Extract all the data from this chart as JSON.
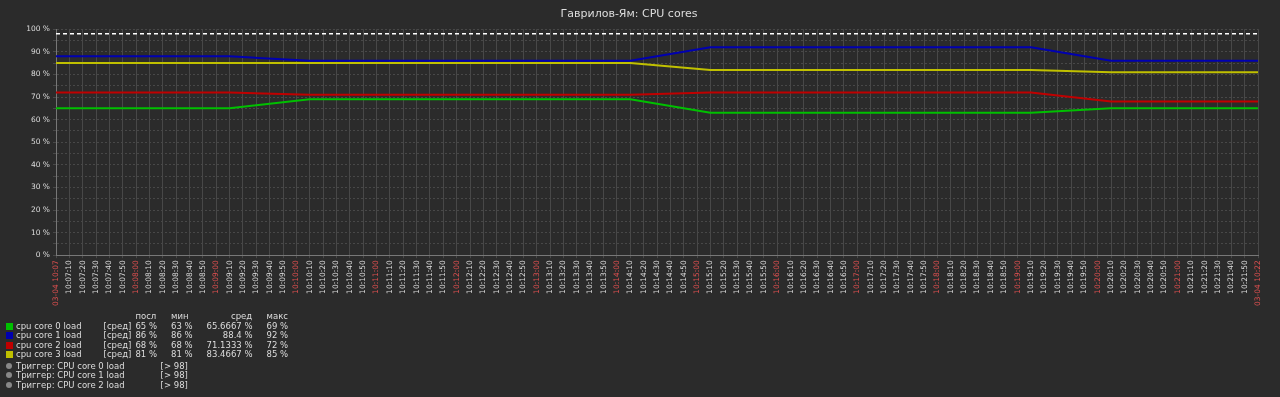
{
  "chart_data": {
    "type": "line",
    "title": "Гаврилов-Ям: CPU cores",
    "x": [
      10.116667,
      10.152778,
      10.169444,
      10.236111,
      10.252778,
      10.319444,
      10.336111,
      10.366667
    ],
    "series": [
      {
        "name": "cpu core 0 load",
        "color": "#00c000",
        "values": [
          65,
          65,
          69,
          69,
          63,
          63,
          65,
          65
        ]
      },
      {
        "name": "cpu core 1 load",
        "color": "#0000b0",
        "values": [
          88,
          88,
          86,
          86,
          92,
          92,
          86,
          86
        ]
      },
      {
        "name": "cpu core 2 load",
        "color": "#c00000",
        "values": [
          72,
          72,
          71,
          71,
          72,
          72,
          68,
          68
        ]
      },
      {
        "name": "cpu core 3 load",
        "color": "#c0c000",
        "values": [
          85,
          85,
          85,
          85,
          82,
          82,
          81,
          81
        ]
      }
    ],
    "xlim": [
      10.116667,
      10.366667
    ],
    "xticks": [
      {
        "value": 10.116667,
        "label": "03-04 10:07"
      },
      {
        "value": 10.119444,
        "label": "10:07:10"
      },
      {
        "value": 10.122222,
        "label": "10:07:20"
      },
      {
        "value": 10.125,
        "label": "10:07:30"
      },
      {
        "value": 10.127778,
        "label": "10:07:40"
      },
      {
        "value": 10.130556,
        "label": "10:07:50"
      },
      {
        "value": 10.133333,
        "label": "10:08:00"
      },
      {
        "value": 10.136111,
        "label": "10:08:10"
      },
      {
        "value": 10.138889,
        "label": "10:08:20"
      },
      {
        "value": 10.141667,
        "label": "10:08:30"
      },
      {
        "value": 10.144444,
        "label": "10:08:40"
      },
      {
        "value": 10.147222,
        "label": "10:08:50"
      },
      {
        "value": 10.15,
        "label": "10:09:00"
      },
      {
        "value": 10.152778,
        "label": "10:09:10"
      },
      {
        "value": 10.155556,
        "label": "10:09:20"
      },
      {
        "value": 10.158333,
        "label": "10:09:30"
      },
      {
        "value": 10.161111,
        "label": "10:09:40"
      },
      {
        "value": 10.163889,
        "label": "10:09:50"
      },
      {
        "value": 10.166667,
        "label": "10:10:00"
      },
      {
        "value": 10.169444,
        "label": "10:10:10"
      },
      {
        "value": 10.172222,
        "label": "10:10:20"
      },
      {
        "value": 10.175,
        "label": "10:10:30"
      },
      {
        "value": 10.177778,
        "label": "10:10:40"
      },
      {
        "value": 10.180556,
        "label": "10:10:50"
      },
      {
        "value": 10.183333,
        "label": "10:11:00"
      },
      {
        "value": 10.186111,
        "label": "10:11:10"
      },
      {
        "value": 10.188889,
        "label": "10:11:20"
      },
      {
        "value": 10.191667,
        "label": "10:11:30"
      },
      {
        "value": 10.194444,
        "label": "10:11:40"
      },
      {
        "value": 10.197222,
        "label": "10:11:50"
      },
      {
        "value": 10.2,
        "label": "10:12:00"
      },
      {
        "value": 10.202778,
        "label": "10:12:10"
      },
      {
        "value": 10.205556,
        "label": "10:12:20"
      },
      {
        "value": 10.208333,
        "label": "10:12:30"
      },
      {
        "value": 10.211111,
        "label": "10:12:40"
      },
      {
        "value": 10.213889,
        "label": "10:12:50"
      },
      {
        "value": 10.216667,
        "label": "10:13:00"
      },
      {
        "value": 10.219444,
        "label": "10:13:10"
      },
      {
        "value": 10.222222,
        "label": "10:13:20"
      },
      {
        "value": 10.225,
        "label": "10:13:30"
      },
      {
        "value": 10.227778,
        "label": "10:13:40"
      },
      {
        "value": 10.230556,
        "label": "10:13:50"
      },
      {
        "value": 10.233333,
        "label": "10:14:00"
      },
      {
        "value": 10.236111,
        "label": "10:14:10"
      },
      {
        "value": 10.238889,
        "label": "10:14:20"
      },
      {
        "value": 10.241667,
        "label": "10:14:30"
      },
      {
        "value": 10.244444,
        "label": "10:14:40"
      },
      {
        "value": 10.247222,
        "label": "10:14:50"
      },
      {
        "value": 10.25,
        "label": "10:15:00"
      },
      {
        "value": 10.252778,
        "label": "10:15:10"
      },
      {
        "value": 10.255556,
        "label": "10:15:20"
      },
      {
        "value": 10.258333,
        "label": "10:15:30"
      },
      {
        "value": 10.261111,
        "label": "10:15:40"
      },
      {
        "value": 10.263889,
        "label": "10:15:50"
      },
      {
        "value": 10.266667,
        "label": "10:16:00"
      },
      {
        "value": 10.269444,
        "label": "10:16:10"
      },
      {
        "value": 10.272222,
        "label": "10:16:20"
      },
      {
        "value": 10.275,
        "label": "10:16:30"
      },
      {
        "value": 10.277778,
        "label": "10:16:40"
      },
      {
        "value": 10.280556,
        "label": "10:16:50"
      },
      {
        "value": 10.283333,
        "label": "10:17:00"
      },
      {
        "value": 10.286111,
        "label": "10:17:10"
      },
      {
        "value": 10.288889,
        "label": "10:17:20"
      },
      {
        "value": 10.291667,
        "label": "10:17:30"
      },
      {
        "value": 10.294444,
        "label": "10:17:40"
      },
      {
        "value": 10.297222,
        "label": "10:17:50"
      },
      {
        "value": 10.3,
        "label": "10:18:00"
      },
      {
        "value": 10.302778,
        "label": "10:18:10"
      },
      {
        "value": 10.305556,
        "label": "10:18:20"
      },
      {
        "value": 10.308333,
        "label": "10:18:30"
      },
      {
        "value": 10.311111,
        "label": "10:18:40"
      },
      {
        "value": 10.313889,
        "label": "10:18:50"
      },
      {
        "value": 10.316667,
        "label": "10:19:00"
      },
      {
        "value": 10.319444,
        "label": "10:19:10"
      },
      {
        "value": 10.322222,
        "label": "10:19:20"
      },
      {
        "value": 10.325,
        "label": "10:19:30"
      },
      {
        "value": 10.327778,
        "label": "10:19:40"
      },
      {
        "value": 10.330556,
        "label": "10:19:50"
      },
      {
        "value": 10.333333,
        "label": "10:20:00"
      },
      {
        "value": 10.336111,
        "label": "10:20:10"
      },
      {
        "value": 10.338889,
        "label": "10:20:20"
      },
      {
        "value": 10.341667,
        "label": "10:20:30"
      },
      {
        "value": 10.344444,
        "label": "10:20:40"
      },
      {
        "value": 10.347222,
        "label": "10:20:50"
      },
      {
        "value": 10.35,
        "label": "10:21:00"
      },
      {
        "value": 10.352778,
        "label": "10:21:10"
      },
      {
        "value": 10.355556,
        "label": "10:21:20"
      },
      {
        "value": 10.358333,
        "label": "10:21:30"
      },
      {
        "value": 10.361111,
        "label": "10:21:40"
      },
      {
        "value": 10.363889,
        "label": "10:21:50"
      },
      {
        "value": 10.366667,
        "label": "03-04 10:22"
      }
    ],
    "ylim": [
      0,
      100
    ],
    "yticks": [
      {
        "value": 0,
        "label": "0 %"
      },
      {
        "value": 5,
        "label": null
      },
      {
        "value": 10,
        "label": "10 %"
      },
      {
        "value": 15,
        "label": null
      },
      {
        "value": 20,
        "label": "20 %"
      },
      {
        "value": 25,
        "label": null
      },
      {
        "value": 30,
        "label": "30 %"
      },
      {
        "value": 35,
        "label": null
      },
      {
        "value": 40,
        "label": "40 %"
      },
      {
        "value": 45,
        "label": null
      },
      {
        "value": 50,
        "label": "50 %"
      },
      {
        "value": 55,
        "label": null
      },
      {
        "value": 60,
        "label": "60 %"
      },
      {
        "value": 65,
        "label": null
      },
      {
        "value": 70,
        "label": "70 %"
      },
      {
        "value": 75,
        "label": null
      },
      {
        "value": 80,
        "label": "80 %"
      },
      {
        "value": 85,
        "label": null
      },
      {
        "value": 90,
        "label": "90 %"
      },
      {
        "value": 95,
        "label": null
      },
      {
        "value": 100,
        "label": "100 %"
      }
    ],
    "grid": true,
    "legend": "bottom",
    "marker": "none",
    "line_style": "solid",
    "ref_lines": [
      {
        "axis": "y",
        "value": 98,
        "color": "#ffffff",
        "line_style": "dashed"
      }
    ],
    "annotations": [
      "посл",
      "мин",
      "сред",
      "макс",
      "[сред]",
      "65 %",
      "63 %",
      "65.6667 %",
      "69 %",
      "[сред]",
      "86 %",
      "86 %",
      "88.4 %",
      "92 %",
      "[сред]",
      "68 %",
      "68 %",
      "71.1333 %",
      "72 %",
      "[сред]",
      "81 %",
      "81 %",
      "83.4667 %",
      "85 %",
      "Триггер: CPU core 0 load",
      "[> 98]",
      "Триггер: CPU core 1 load",
      "[> 98]",
      "Триггер: CPU core 2 load",
      "[> 98]"
    ]
  }
}
